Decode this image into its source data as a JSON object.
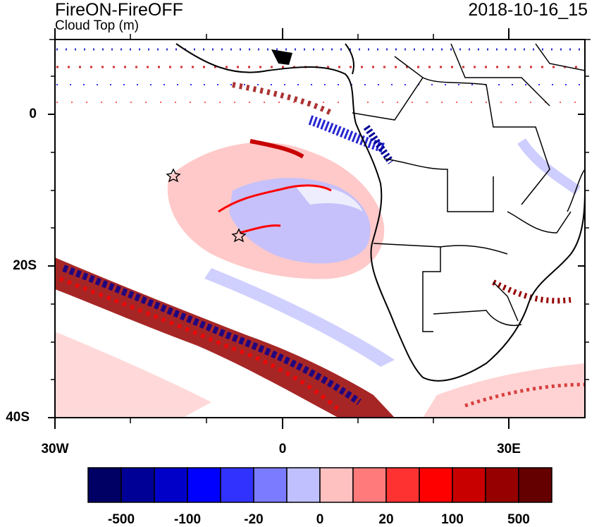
{
  "plot": {
    "title": "FireON-FireOFF",
    "subtitle": "Cloud Top (m)",
    "timestamp": "2018-10-16_15"
  },
  "axes": {
    "y_labels": [
      "0",
      "20S",
      "40S"
    ],
    "x_labels": [
      "30W",
      "0",
      "30E"
    ]
  },
  "colorbar": {
    "colors": [
      "#000064",
      "#000096",
      "#0000c8",
      "#0000ff",
      "#3232ff",
      "#7b7bff",
      "#c0c0ff",
      "#ffc0c0",
      "#ff7b7b",
      "#ff3232",
      "#ff0000",
      "#c80000",
      "#960000",
      "#640000"
    ],
    "labels": [
      "-500",
      "-100",
      "-20",
      "0",
      "20",
      "100",
      "500"
    ]
  },
  "markers": {
    "stars": [
      "star-marker-north",
      "star-marker-south"
    ]
  }
}
